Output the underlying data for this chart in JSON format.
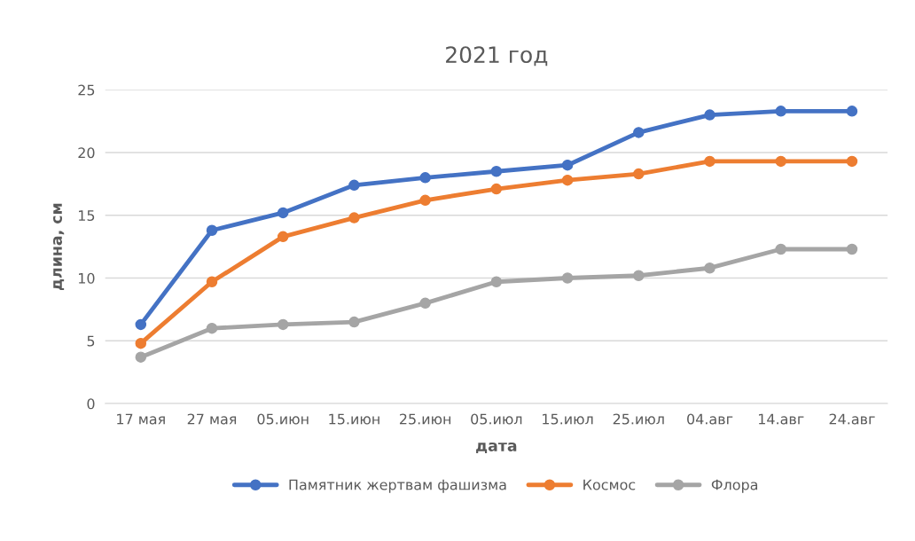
{
  "chart_data": {
    "type": "line",
    "title": "2021 год",
    "xlabel": "дата",
    "ylabel": "длина, см",
    "categories": [
      "17 мая",
      "27 мая",
      "05.июн",
      "15.июн",
      "25.июн",
      "05.июл",
      "15.июл",
      "25.июл",
      "04.авг",
      "14.авг",
      "24.авг"
    ],
    "series": [
      {
        "name": "Памятник жертвам фашизма",
        "color": "#4472c4",
        "values": [
          6.3,
          13.8,
          15.2,
          17.4,
          18.0,
          18.5,
          19.0,
          21.6,
          23.0,
          23.3,
          23.3
        ]
      },
      {
        "name": "Космос",
        "color": "#ed7d31",
        "values": [
          4.8,
          9.7,
          13.3,
          14.8,
          16.2,
          17.1,
          17.8,
          18.3,
          19.3,
          19.3,
          19.3
        ]
      },
      {
        "name": "Флора",
        "color": "#a5a5a5",
        "values": [
          3.7,
          6.0,
          6.3,
          6.5,
          8.0,
          9.7,
          10.0,
          10.2,
          10.8,
          12.3,
          12.3
        ]
      }
    ],
    "ylim": [
      0,
      25
    ],
    "yticks": [
      0,
      5,
      10,
      15,
      20,
      25
    ],
    "grid": "y",
    "legend": "bottom",
    "marker": "circle",
    "line_style": "solid"
  }
}
